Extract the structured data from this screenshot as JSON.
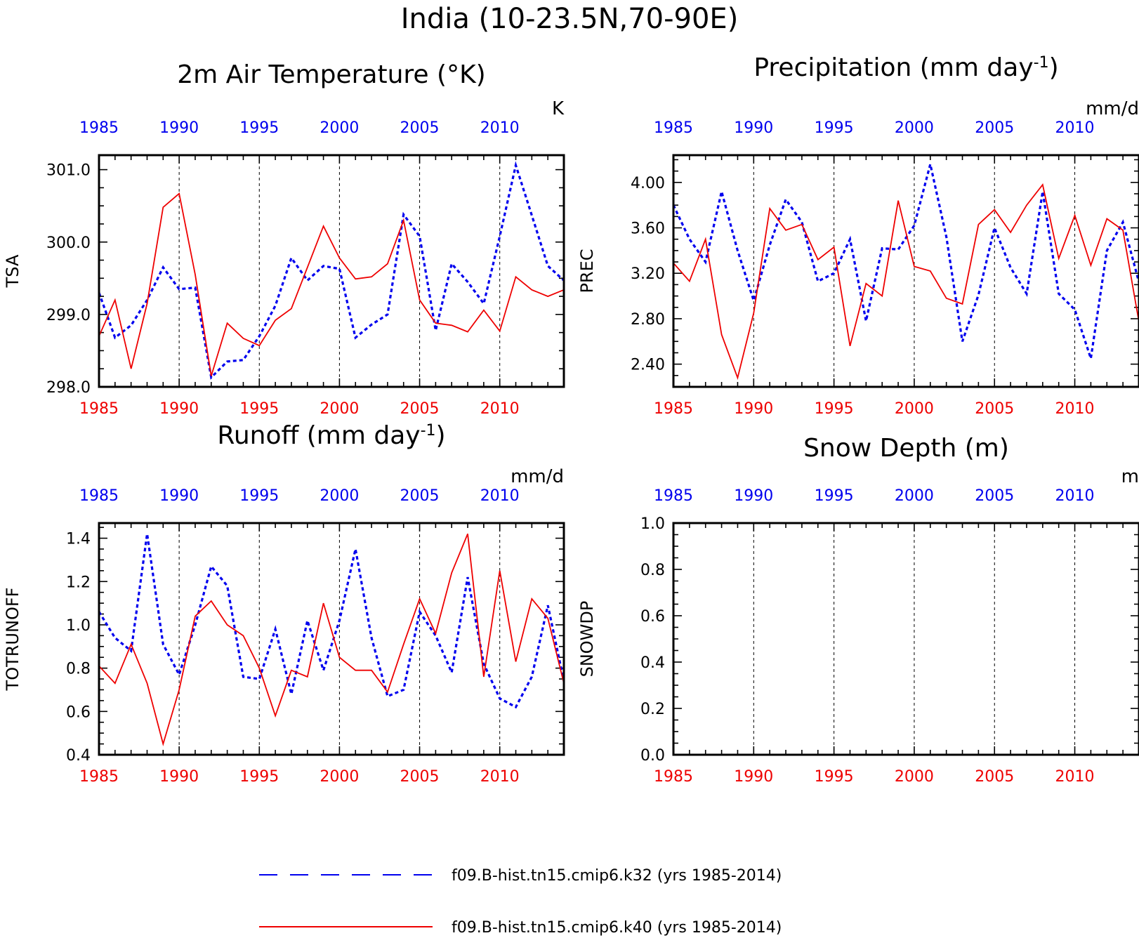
{
  "title": "India (10-23.5N,70-90E)",
  "legend": [
    {
      "label": "f09.B-hist.tn15.cmip6.k32 (yrs 1985-2014)",
      "color": "#0000ee",
      "style": "dashed"
    },
    {
      "label": "f09.B-hist.tn15.cmip6.k40 (yrs 1985-2014)",
      "color": "#ee0000",
      "style": "solid"
    }
  ],
  "chart_data": [
    {
      "type": "line",
      "title": "2m Air Temperature (°K)",
      "ylabel": "TSA",
      "units": "K",
      "xlim": [
        1985,
        2014
      ],
      "ylim": [
        298.0,
        301.2
      ],
      "yticks": [
        "298.0",
        "299.0",
        "300.0",
        "301.0"
      ],
      "xticks": [
        "1985",
        "1990",
        "1995",
        "2000",
        "2005",
        "2010"
      ],
      "x": [
        1985,
        1986,
        1987,
        1988,
        1989,
        1990,
        1991,
        1992,
        1993,
        1994,
        1995,
        1996,
        1997,
        1998,
        1999,
        2000,
        2001,
        2002,
        2003,
        2004,
        2005,
        2006,
        2007,
        2008,
        2009,
        2010,
        2011,
        2012,
        2013,
        2014
      ],
      "series": [
        {
          "values": [
            299.3,
            298.68,
            298.85,
            299.2,
            299.65,
            299.35,
            299.37,
            298.13,
            298.35,
            298.37,
            298.7,
            299.12,
            299.78,
            299.47,
            299.67,
            299.63,
            298.68,
            298.86,
            299.0,
            300.38,
            300.08,
            298.78,
            299.7,
            299.45,
            299.15,
            300.08,
            301.06,
            300.37,
            299.67,
            299.47
          ]
        },
        {
          "values": [
            298.7,
            299.2,
            298.25,
            299.15,
            300.48,
            300.67,
            299.55,
            298.15,
            298.88,
            298.67,
            298.57,
            298.92,
            299.08,
            299.65,
            300.22,
            299.78,
            299.49,
            299.52,
            299.7,
            300.3,
            299.2,
            298.88,
            298.85,
            298.76,
            299.06,
            298.77,
            299.52,
            299.34,
            299.25,
            299.34
          ]
        }
      ]
    },
    {
      "type": "line",
      "title": "Precipitation (mm day",
      "title_sup": "-1",
      "title_end": ")",
      "ylabel": "PREC",
      "units": "mm/d",
      "xlim": [
        1985,
        2014
      ],
      "ylim": [
        2.2,
        4.24
      ],
      "yticks": [
        "2.40",
        "2.80",
        "3.20",
        "3.60",
        "4.00"
      ],
      "xticks": [
        "1985",
        "1990",
        "1995",
        "2000",
        "2005",
        "2010"
      ],
      "x": [
        1985,
        1986,
        1987,
        1988,
        1989,
        1990,
        1991,
        1992,
        1993,
        1994,
        1995,
        1996,
        1997,
        1998,
        1999,
        2000,
        2001,
        2002,
        2003,
        2004,
        2005,
        2006,
        2007,
        2008,
        2009,
        2010,
        2011,
        2012,
        2013,
        2014
      ],
      "series": [
        {
          "values": [
            3.8,
            3.5,
            3.3,
            3.92,
            3.4,
            2.96,
            3.45,
            3.85,
            3.65,
            3.13,
            3.2,
            3.5,
            2.78,
            3.42,
            3.41,
            3.62,
            4.16,
            3.52,
            2.6,
            3.01,
            3.6,
            3.25,
            3.02,
            3.92,
            3.02,
            2.88,
            2.45,
            3.4,
            3.65,
            3.12
          ]
        },
        {
          "values": [
            3.29,
            3.13,
            3.5,
            2.66,
            2.28,
            2.85,
            3.77,
            3.58,
            3.63,
            3.32,
            3.43,
            2.56,
            3.11,
            3.0,
            3.84,
            3.26,
            3.22,
            2.98,
            2.93,
            3.63,
            3.76,
            3.56,
            3.8,
            3.98,
            3.33,
            3.71,
            3.27,
            3.68,
            3.58,
            2.77
          ]
        }
      ]
    },
    {
      "type": "line",
      "title": "Runoff (mm day",
      "title_sup": "-1",
      "title_end": ")",
      "ylabel": "TOTRUNOFF",
      "units": "mm/d",
      "xlim": [
        1985,
        2014
      ],
      "ylim": [
        0.4,
        1.47
      ],
      "yticks": [
        "0.4",
        "0.6",
        "0.8",
        "1.0",
        "1.2",
        "1.4"
      ],
      "xticks": [
        "1985",
        "1990",
        "1995",
        "2000",
        "2005",
        "2010"
      ],
      "x": [
        1985,
        1986,
        1987,
        1988,
        1989,
        1990,
        1991,
        1992,
        1993,
        1994,
        1995,
        1996,
        1997,
        1998,
        1999,
        2000,
        2001,
        2002,
        2003,
        2004,
        2005,
        2006,
        2007,
        2008,
        2009,
        2010,
        2011,
        2012,
        2013,
        2014
      ],
      "series": [
        {
          "values": [
            1.06,
            0.94,
            0.88,
            1.42,
            0.91,
            0.77,
            1.0,
            1.27,
            1.18,
            0.76,
            0.75,
            0.98,
            0.68,
            1.02,
            0.79,
            1.02,
            1.35,
            0.94,
            0.67,
            0.7,
            1.06,
            0.95,
            0.78,
            1.22,
            0.82,
            0.66,
            0.62,
            0.76,
            1.09,
            0.74
          ]
        },
        {
          "values": [
            0.81,
            0.73,
            0.91,
            0.73,
            0.45,
            0.7,
            1.04,
            1.11,
            1.0,
            0.95,
            0.8,
            0.58,
            0.79,
            0.76,
            1.1,
            0.85,
            0.79,
            0.79,
            0.69,
            0.91,
            1.12,
            0.96,
            1.24,
            1.42,
            0.76,
            1.25,
            0.83,
            1.12,
            1.03,
            0.73
          ]
        }
      ]
    },
    {
      "type": "line",
      "title": "Snow Depth (m)",
      "ylabel": "SNOWDP",
      "units": "m",
      "xlim": [
        1985,
        2014
      ],
      "ylim": [
        0.0,
        1.0
      ],
      "yticks": [
        "0.0",
        "0.2",
        "0.4",
        "0.6",
        "0.8",
        "1.0"
      ],
      "xticks": [
        "1985",
        "1990",
        "1995",
        "2000",
        "2005",
        "2010"
      ],
      "x": [],
      "series": []
    }
  ]
}
